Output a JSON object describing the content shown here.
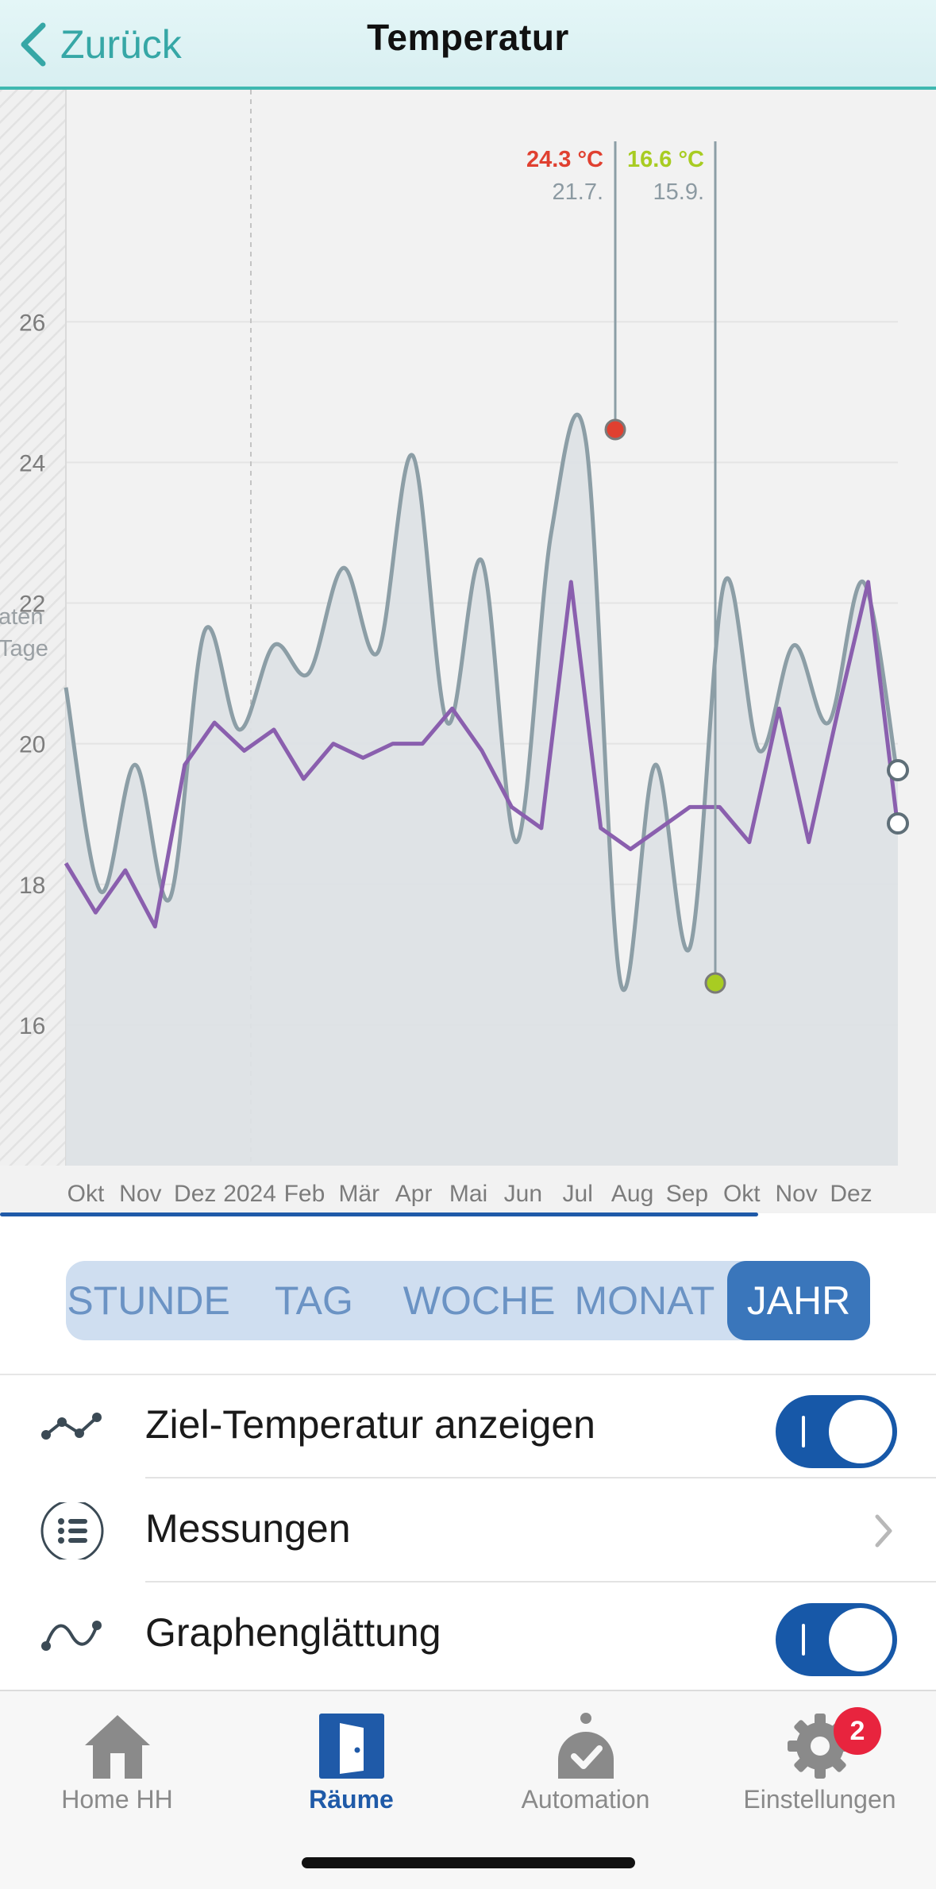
{
  "header": {
    "back_label": "Zurück",
    "title": "Temperatur"
  },
  "chart_data": {
    "type": "line",
    "y_ticks": [
      "16",
      "18",
      "20",
      "22",
      "24",
      "26"
    ],
    "ylim": [
      14,
      29.3
    ],
    "x_ticks": [
      "Okt",
      "Nov",
      "Dez",
      "2024",
      "Feb",
      "Mär",
      "Apr",
      "Mai",
      "Jun",
      "Jul",
      "Aug",
      "Sep",
      "Okt",
      "Nov",
      "Dez"
    ],
    "left_label_1": "aten",
    "left_label_2": "Tage",
    "markers": [
      {
        "value_label": "24.3 °C",
        "date_label": "21.7.",
        "value": 24.3,
        "color": "#e04030"
      },
      {
        "value_label": "16.6 °C",
        "date_label": "15.9.",
        "value": 16.6,
        "color": "#a8cc22"
      }
    ],
    "series": [
      {
        "role": "measured temperature",
        "color": "#8c9ea6",
        "values": [
          20.8,
          17.9,
          19.7,
          17.8,
          21.6,
          20.2,
          21.4,
          21.0,
          22.5,
          21.3,
          24.1,
          20.3,
          22.6,
          18.6,
          23.0,
          24.3,
          16.6,
          19.7,
          17.1,
          22.3,
          19.9,
          21.4,
          20.3,
          22.3,
          19.5
        ]
      },
      {
        "role": "target temperature",
        "color": "#8a5fae",
        "values": [
          18.3,
          17.6,
          18.2,
          17.4,
          19.7,
          20.3,
          19.9,
          20.2,
          19.5,
          20.0,
          19.8,
          20.0,
          20.0,
          20.5,
          19.9,
          19.1,
          18.8,
          22.3,
          18.8,
          18.5,
          18.8,
          19.1,
          19.1,
          18.6,
          20.5,
          18.6,
          20.5,
          22.3,
          18.8
        ]
      }
    ],
    "legend": "none",
    "grid": true
  },
  "range_tabs": [
    {
      "label": "STUNDE"
    },
    {
      "label": "TAG"
    },
    {
      "label": "WOCHE"
    },
    {
      "label": "MONAT"
    },
    {
      "label": "JAHR"
    }
  ],
  "active_range": "JAHR",
  "settings": {
    "target_temp_label": "Ziel-Temperatur anzeigen",
    "target_temp_on": true,
    "measurements_label": "Messungen",
    "smoothing_label": "Graphenglättung",
    "smoothing_on": true
  },
  "tabbar": {
    "home": "Home HH",
    "rooms": "Räume",
    "automation": "Automation",
    "settings": "Einstellungen",
    "settings_badge": "2"
  }
}
